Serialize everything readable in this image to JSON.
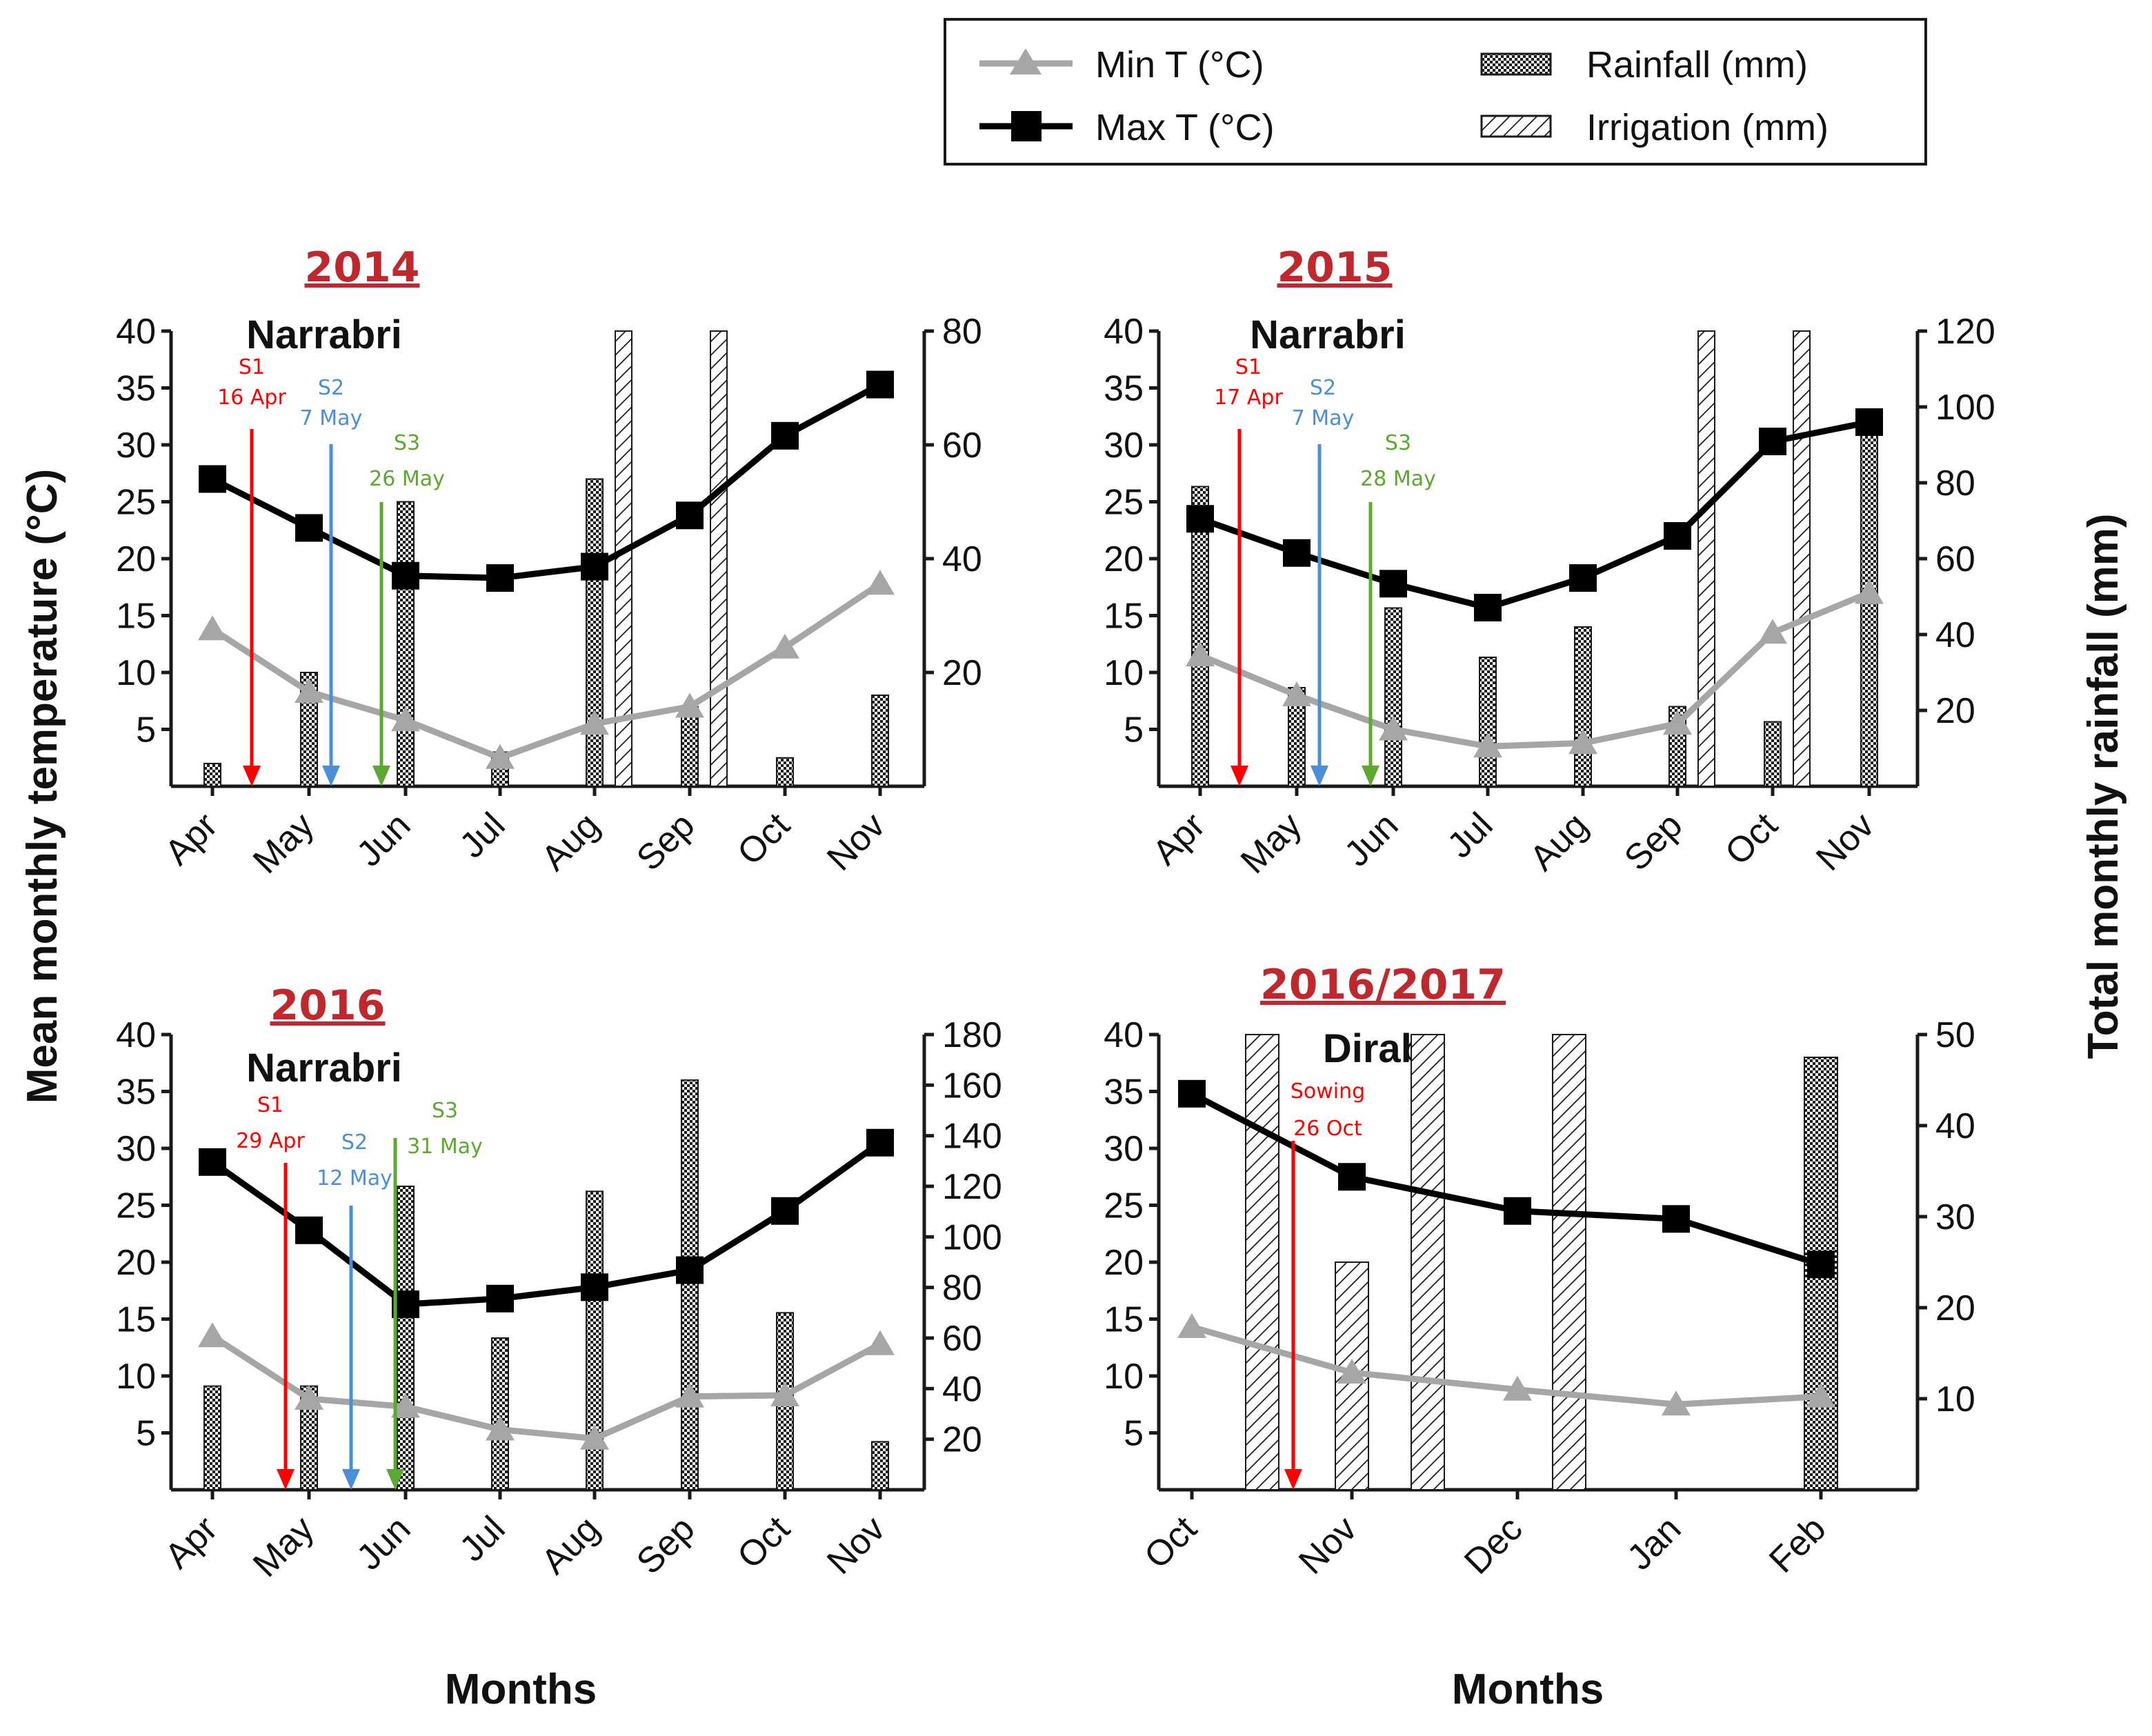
{
  "chart_data": {
    "type": "bar",
    "legend": {
      "position": "top-right",
      "items": [
        {
          "key": "min",
          "label": "Min T (°C)"
        },
        {
          "key": "max",
          "label": "Max T (°C)"
        },
        {
          "key": "rain",
          "label": "Rainfall (mm)"
        },
        {
          "key": "irr",
          "label": "Irrigation (mm)"
        }
      ]
    },
    "ylabel_left": "Mean monthly temperature (°C)",
    "ylabel_right": "Total monthly rainfall (mm)",
    "xlabel": "Months",
    "colors": {
      "min": "#a6a6a6",
      "max": "#000000",
      "s1": "#ff0000",
      "s2": "#4a90d9",
      "s3": "#5da831"
    },
    "panels": [
      {
        "title": "2014",
        "site": "Narrabri",
        "categories": [
          "Apr",
          "May",
          "Jun",
          "Jul",
          "Aug",
          "Sep",
          "Oct",
          "Nov"
        ],
        "ylim_left": [
          0,
          40
        ],
        "yticks_left": [
          5,
          10,
          15,
          20,
          25,
          30,
          35,
          40
        ],
        "ylim_right": [
          0,
          80
        ],
        "yticks_right": [
          20,
          40,
          60,
          80
        ],
        "series": [
          {
            "name": "Max T (°C)",
            "values": [
              27,
              22.7,
              18.5,
              18.3,
              19.3,
              23.8,
              30.8,
              35.3
            ]
          },
          {
            "name": "Min T (°C)",
            "values": [
              13.8,
              8.3,
              5.8,
              2.5,
              5.5,
              7,
              12.2,
              17.8
            ]
          },
          {
            "name": "Rainfall (mm)",
            "values": [
              4,
              20,
              50,
              6,
              54,
              14,
              5,
              16
            ]
          },
          {
            "name": "Irrigation (mm)",
            "values": [
              0,
              0,
              0,
              0,
              80,
              80,
              0,
              0
            ]
          }
        ],
        "sowing": [
          {
            "id": "S1",
            "date": "16 Apr",
            "color": "s1"
          },
          {
            "id": "S2",
            "date": "7 May",
            "color": "s2"
          },
          {
            "id": "S3",
            "date": "26 May",
            "color": "s3"
          }
        ]
      },
      {
        "title": "2015",
        "site": "Narrabri",
        "categories": [
          "Apr",
          "May",
          "Jun",
          "Jul",
          "Aug",
          "Sep",
          "Oct",
          "Nov"
        ],
        "ylim_left": [
          0,
          40
        ],
        "yticks_left": [
          5,
          10,
          15,
          20,
          25,
          30,
          35,
          40
        ],
        "ylim_right": [
          0,
          120
        ],
        "yticks_right": [
          20,
          40,
          60,
          80,
          100,
          120
        ],
        "series": [
          {
            "name": "Max T (°C)",
            "values": [
              23.5,
              20.5,
              17.8,
              15.7,
              18.3,
              22,
              30.3,
              32
            ]
          },
          {
            "name": "Min T (°C)",
            "values": [
              11.5,
              8,
              5,
              3.5,
              3.8,
              5.5,
              13.5,
              17
            ]
          },
          {
            "name": "Rainfall (mm)",
            "values": [
              79,
              26,
              47,
              34,
              42,
              21,
              17,
              99
            ]
          },
          {
            "name": "Irrigation (mm)",
            "values": [
              0,
              0,
              0,
              0,
              0,
              120,
              120,
              0
            ]
          }
        ],
        "sowing": [
          {
            "id": "S1",
            "date": "17 Apr",
            "color": "s1"
          },
          {
            "id": "S2",
            "date": "7 May",
            "color": "s2"
          },
          {
            "id": "S3",
            "date": "28 May",
            "color": "s3"
          }
        ]
      },
      {
        "title": "2016",
        "site": "Narrabri",
        "categories": [
          "Apr",
          "May",
          "Jun",
          "Jul",
          "Aug",
          "Sep",
          "Oct",
          "Nov"
        ],
        "ylim_left": [
          0,
          40
        ],
        "yticks_left": [
          5,
          10,
          15,
          20,
          25,
          30,
          35,
          40
        ],
        "ylim_right": [
          0,
          180
        ],
        "yticks_right": [
          20,
          40,
          60,
          80,
          100,
          120,
          140,
          160,
          180
        ],
        "series": [
          {
            "name": "Max T (°C)",
            "values": [
              28.8,
              22.8,
              16.3,
              16.8,
              17.8,
              19.3,
              24.5,
              30.5
            ]
          },
          {
            "name": "Min T (°C)",
            "values": [
              13.5,
              8,
              7.3,
              5.3,
              4.5,
              8.2,
              8.3,
              12.8
            ]
          },
          {
            "name": "Rainfall (mm)",
            "values": [
              41,
              41,
              120,
              60,
              118,
              162,
              70,
              19
            ]
          },
          {
            "name": "Irrigation (mm)",
            "values": [
              0,
              0,
              0,
              0,
              0,
              0,
              0,
              0
            ]
          }
        ],
        "sowing": [
          {
            "id": "S1",
            "date": "29 Apr",
            "color": "s1"
          },
          {
            "id": "S2",
            "date": "12 May",
            "color": "s2"
          },
          {
            "id": "S3",
            "date": "31 May",
            "color": "s3"
          }
        ]
      },
      {
        "title": "2016/2017",
        "site": "Dirab",
        "categories": [
          "Oct",
          "Nov",
          "Dec",
          "Jan",
          "Feb"
        ],
        "ylim_left": [
          0,
          40
        ],
        "yticks_left": [
          5,
          10,
          15,
          20,
          25,
          30,
          35,
          40
        ],
        "ylim_right": [
          0,
          50
        ],
        "yticks_right": [
          10,
          20,
          30,
          40,
          50
        ],
        "series": [
          {
            "name": "Max T (°C)",
            "values": [
              34.8,
              27.5,
              24.5,
              23.8,
              19.8
            ]
          },
          {
            "name": "Min T (°C)",
            "values": [
              14.3,
              10.3,
              8.8,
              7.5,
              8.2
            ]
          },
          {
            "name": "Rainfall (mm)",
            "values": [
              0,
              25,
              0,
              0,
              47.5
            ]
          },
          {
            "name": "Irrigation (mm)",
            "values": [
              50,
              25,
              50,
              50,
              0
            ]
          }
        ],
        "sowing": [
          {
            "id": "Sowing",
            "date": "26 Oct",
            "color": "s1"
          }
        ]
      }
    ]
  }
}
